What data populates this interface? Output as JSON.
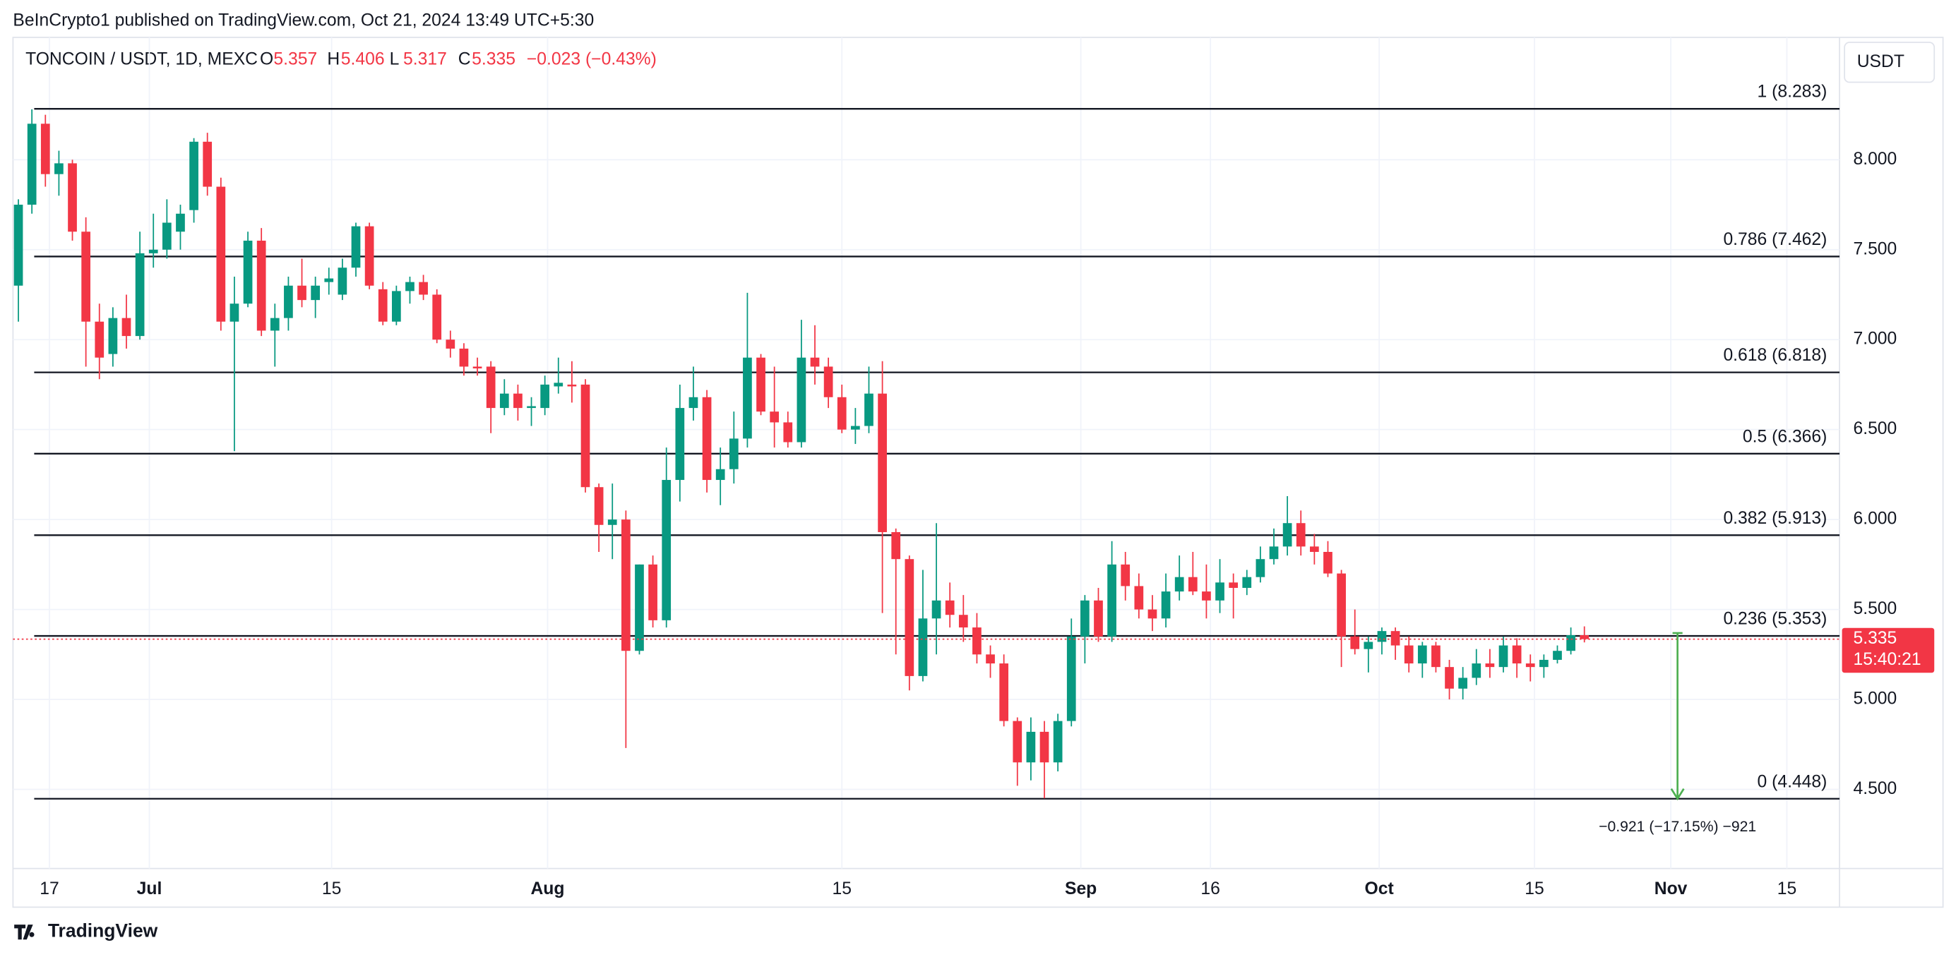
{
  "header": {
    "publisher": "BeInCrypto1 published on TradingView.com, Oct 21, 2024 13:49 UTC+5:30"
  },
  "chart_data": {
    "type": "candlestick",
    "symbol": "TONCOIN / USDT, 1D, MEXC",
    "legend": [
      {
        "label": "O",
        "value": 5.357
      },
      {
        "label": "H",
        "value": 5.406
      },
      {
        "label": "L",
        "value": 5.317
      },
      {
        "label": "C",
        "value": 5.335
      }
    ],
    "change": "−0.023 (−0.43%)",
    "currency_button": "USDT",
    "up_color": "#089981",
    "down_color": "#f23645",
    "open": [
      7.3,
      7.75,
      8.2,
      7.92,
      7.98,
      7.6,
      7.1,
      6.92,
      7.12,
      7.02,
      7.48,
      7.5,
      7.6,
      7.72,
      8.1,
      7.85,
      7.1,
      7.2,
      7.55,
      7.05,
      7.12,
      7.3,
      7.22,
      7.32,
      7.25,
      7.4,
      7.63,
      7.28,
      7.1,
      7.27,
      7.32,
      7.25,
      7.0,
      6.95,
      6.85,
      6.85,
      6.62,
      6.7,
      6.62,
      6.62,
      6.74,
      6.75,
      6.75,
      6.18,
      5.97,
      6.0,
      5.27,
      5.75,
      5.44,
      6.22,
      6.62,
      6.68,
      6.22,
      6.28,
      6.45,
      6.9,
      6.6,
      6.54,
      6.43,
      6.9,
      6.85,
      6.68,
      6.5,
      6.52,
      6.7,
      5.93,
      5.78,
      5.13,
      5.45,
      5.55,
      5.47,
      5.4,
      5.25,
      5.2,
      4.88,
      4.65,
      4.82,
      4.65,
      4.88,
      5.35,
      5.55,
      5.35,
      5.75,
      5.63,
      5.5,
      5.45,
      5.6,
      5.68,
      5.6,
      5.55,
      5.65,
      5.62,
      5.68,
      5.78,
      5.85,
      5.98,
      5.85,
      5.82,
      5.7,
      5.35,
      5.28,
      5.32,
      5.38,
      5.3,
      5.2,
      5.3,
      5.18,
      5.06,
      5.12,
      5.2,
      5.18,
      5.3,
      5.2,
      5.18,
      5.22,
      5.27,
      5.357
    ],
    "high": [
      7.78,
      8.28,
      8.25,
      8.05,
      8.0,
      7.68,
      7.2,
      7.18,
      7.25,
      7.6,
      7.7,
      7.78,
      7.75,
      8.12,
      8.15,
      7.9,
      7.35,
      7.6,
      7.62,
      7.2,
      7.35,
      7.45,
      7.35,
      7.4,
      7.45,
      7.65,
      7.65,
      7.32,
      7.3,
      7.35,
      7.36,
      7.28,
      7.05,
      6.98,
      6.9,
      6.88,
      6.78,
      6.75,
      6.68,
      6.8,
      6.9,
      6.88,
      6.78,
      6.2,
      6.2,
      6.05,
      5.75,
      5.8,
      6.4,
      6.75,
      6.85,
      6.72,
      6.4,
      6.6,
      7.26,
      6.92,
      6.85,
      6.6,
      7.11,
      7.08,
      6.9,
      6.75,
      6.62,
      6.85,
      6.88,
      5.95,
      5.8,
      5.72,
      5.98,
      5.65,
      5.58,
      5.48,
      5.3,
      5.25,
      4.9,
      4.9,
      4.88,
      4.92,
      5.45,
      5.58,
      5.62,
      5.88,
      5.82,
      5.7,
      5.58,
      5.7,
      5.8,
      5.82,
      5.75,
      5.78,
      5.7,
      5.72,
      5.85,
      5.95,
      6.13,
      6.05,
      5.92,
      5.88,
      5.72,
      5.5,
      5.35,
      5.4,
      5.4,
      5.35,
      5.32,
      5.32,
      5.22,
      5.18,
      5.28,
      5.28,
      5.35,
      5.34,
      5.25,
      5.25,
      5.3,
      5.4,
      5.406
    ],
    "low": [
      7.1,
      7.7,
      7.85,
      7.8,
      7.55,
      6.85,
      6.78,
      6.85,
      6.95,
      7.0,
      7.4,
      7.45,
      7.5,
      7.65,
      7.8,
      7.05,
      6.38,
      7.18,
      7.02,
      6.85,
      7.05,
      7.18,
      7.12,
      7.25,
      7.22,
      7.35,
      7.28,
      7.08,
      7.08,
      7.2,
      7.22,
      6.98,
      6.9,
      6.8,
      6.8,
      6.48,
      6.58,
      6.55,
      6.52,
      6.58,
      6.7,
      6.65,
      6.15,
      5.82,
      5.78,
      4.73,
      5.25,
      5.4,
      5.4,
      6.1,
      6.55,
      6.15,
      6.08,
      6.2,
      6.4,
      6.58,
      6.4,
      6.4,
      6.4,
      6.75,
      6.62,
      6.48,
      6.42,
      6.48,
      5.48,
      5.25,
      5.05,
      5.1,
      5.25,
      5.4,
      5.32,
      5.2,
      5.12,
      4.85,
      4.52,
      4.55,
      4.45,
      4.6,
      4.85,
      5.2,
      5.32,
      5.32,
      5.55,
      5.45,
      5.38,
      5.4,
      5.55,
      5.58,
      5.45,
      5.48,
      5.45,
      5.58,
      5.65,
      5.75,
      5.8,
      5.8,
      5.75,
      5.68,
      5.18,
      5.25,
      5.15,
      5.25,
      5.22,
      5.15,
      5.12,
      5.15,
      5.0,
      5.0,
      5.08,
      5.12,
      5.15,
      5.12,
      5.1,
      5.12,
      5.2,
      5.25,
      5.317
    ],
    "close": [
      7.75,
      8.2,
      7.92,
      7.98,
      7.6,
      7.1,
      6.9,
      7.12,
      7.02,
      7.48,
      7.5,
      7.65,
      7.7,
      8.1,
      7.85,
      7.1,
      7.2,
      7.55,
      7.05,
      7.12,
      7.3,
      7.22,
      7.3,
      7.34,
      7.4,
      7.63,
      7.3,
      7.1,
      7.27,
      7.32,
      7.25,
      7.0,
      6.95,
      6.85,
      6.84,
      6.62,
      6.7,
      6.62,
      6.63,
      6.75,
      6.76,
      6.74,
      6.18,
      5.97,
      6.0,
      5.27,
      5.75,
      5.44,
      6.22,
      6.62,
      6.68,
      6.22,
      6.28,
      6.45,
      6.9,
      6.6,
      6.54,
      6.43,
      6.9,
      6.85,
      6.68,
      6.5,
      6.52,
      6.7,
      5.93,
      5.78,
      5.13,
      5.45,
      5.55,
      5.47,
      5.4,
      5.25,
      5.2,
      4.88,
      4.65,
      4.82,
      4.65,
      4.88,
      5.35,
      5.55,
      5.35,
      5.75,
      5.63,
      5.5,
      5.45,
      5.6,
      5.68,
      5.6,
      5.55,
      5.65,
      5.62,
      5.68,
      5.78,
      5.85,
      5.98,
      5.85,
      5.82,
      5.7,
      5.35,
      5.28,
      5.32,
      5.38,
      5.3,
      5.2,
      5.3,
      5.18,
      5.06,
      5.12,
      5.2,
      5.18,
      5.3,
      5.2,
      5.18,
      5.22,
      5.27,
      5.357,
      5.335
    ],
    "xlim": [
      -0.4,
      134.9
    ],
    "xticks": [
      {
        "value": 2.3,
        "label": "17"
      },
      {
        "value": 9.7,
        "label": "Jul"
      },
      {
        "value": 23.2,
        "label": "15"
      },
      {
        "value": 39.2,
        "label": "Aug"
      },
      {
        "value": 61,
        "label": "15"
      },
      {
        "value": 78.7,
        "label": "Sep"
      },
      {
        "value": 88.3,
        "label": "16"
      },
      {
        "value": 100.8,
        "label": "Oct"
      },
      {
        "value": 112.3,
        "label": "15"
      },
      {
        "value": 122.4,
        "label": "Nov"
      },
      {
        "value": 131,
        "label": "15"
      }
    ],
    "ylim": [
      4.06,
      8.68
    ],
    "yticks": [
      {
        "value": 4.5,
        "label": "4.500"
      },
      {
        "value": 5,
        "label": "5.000"
      },
      {
        "value": 5.5,
        "label": "5.500"
      },
      {
        "value": 6,
        "label": "6.000"
      },
      {
        "value": 6.5,
        "label": "6.500"
      },
      {
        "value": 7,
        "label": "7.000"
      },
      {
        "value": 7.5,
        "label": "7.500"
      },
      {
        "value": 8,
        "label": "8.000"
      }
    ],
    "grid": true,
    "fib_levels": [
      {
        "label": "1 (8.283)",
        "value": 8.283
      },
      {
        "label": "0.786 (7.462)",
        "value": 7.462
      },
      {
        "label": "0.618 (6.818)",
        "value": 6.818
      },
      {
        "label": "0.5 (6.366)",
        "value": 6.366
      },
      {
        "label": "0.382 (5.913)",
        "value": 5.913
      },
      {
        "label": "0.236 (5.353)",
        "value": 5.353
      },
      {
        "label": "0 (4.448)",
        "value": 4.448
      }
    ],
    "last_price": 5.335,
    "countdown": "15:40:21",
    "measure": {
      "x": 122.9,
      "from": 5.369,
      "to": 4.448,
      "label": "−0.921 (−17.15%) −921",
      "color": "#4caf50"
    }
  },
  "footer": {
    "brand": "TradingView"
  }
}
